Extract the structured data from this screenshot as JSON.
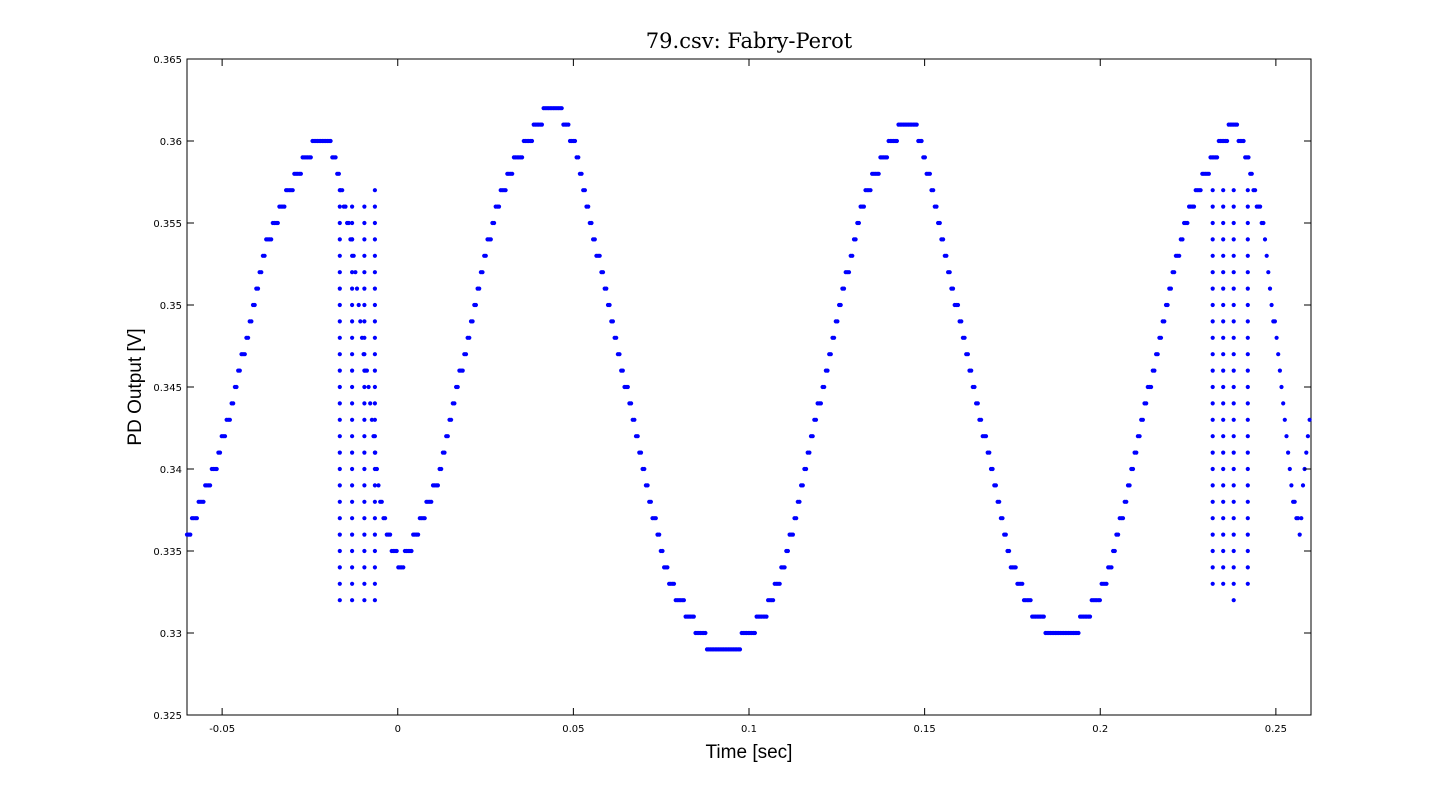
{
  "chart_data": {
    "type": "scatter",
    "title": "79.csv: Fabry-Perot",
    "xlabel": "Time [sec]",
    "ylabel": "PD Output [V]",
    "xlim": [
      -0.06,
      0.26
    ],
    "ylim": [
      0.325,
      0.365
    ],
    "xticks": [
      -0.05,
      0,
      0.05,
      0.1,
      0.15,
      0.2,
      0.25
    ],
    "xtick_labels": [
      "-0.05",
      "0",
      "0.05",
      "0.1",
      "0.15",
      "0.2",
      "0.25"
    ],
    "yticks": [
      0.325,
      0.33,
      0.335,
      0.34,
      0.345,
      0.35,
      0.355,
      0.36,
      0.365
    ],
    "ytick_labels": [
      "0.325",
      "0.33",
      "0.335",
      "0.34",
      "0.345",
      "0.35",
      "0.355",
      "0.36",
      "0.365"
    ],
    "grid": false,
    "marker_color": "#0000ff",
    "quantization": 0.001,
    "sample_step": 0.00047,
    "series": [
      {
        "points": [
          [
            -0.06,
            0.336
          ],
          [
            -0.058,
            0.337
          ],
          [
            -0.056,
            0.338
          ],
          [
            -0.054,
            0.339
          ],
          [
            -0.052,
            0.34
          ],
          [
            -0.051,
            0.341
          ],
          [
            -0.05,
            0.342
          ],
          [
            -0.048,
            0.343
          ],
          [
            -0.047,
            0.344
          ],
          [
            -0.046,
            0.345
          ],
          [
            -0.045,
            0.346
          ],
          [
            -0.044,
            0.347
          ],
          [
            -0.043,
            0.348
          ],
          [
            -0.042,
            0.349
          ],
          [
            -0.041,
            0.35
          ],
          [
            -0.04,
            0.351
          ],
          [
            -0.039,
            0.352
          ],
          [
            -0.038,
            0.353
          ],
          [
            -0.037,
            0.354
          ],
          [
            -0.035,
            0.355
          ],
          [
            -0.033,
            0.356
          ],
          [
            -0.031,
            0.357
          ],
          [
            -0.0285,
            0.358
          ],
          [
            -0.026,
            0.359
          ],
          [
            -0.023,
            0.36
          ],
          [
            -0.02,
            0.36
          ],
          [
            -0.018,
            0.359
          ],
          [
            -0.017,
            0.358
          ],
          [
            -0.016,
            0.357
          ],
          [
            -0.015,
            0.356
          ],
          [
            -0.014,
            0.355
          ],
          [
            -0.013,
            0.354
          ],
          [
            -0.012,
            0.352
          ],
          [
            -0.011,
            0.35
          ],
          [
            -0.01,
            0.348
          ],
          [
            -0.009,
            0.346
          ],
          [
            -0.008,
            0.344
          ],
          [
            -0.007,
            0.342
          ],
          [
            -0.006,
            0.34
          ],
          [
            -0.005,
            0.338
          ],
          [
            -0.004,
            0.337
          ],
          [
            -0.003,
            0.336
          ],
          [
            -0.001,
            0.335
          ],
          [
            0.001,
            0.334
          ],
          [
            0.003,
            0.335
          ],
          [
            0.005,
            0.336
          ],
          [
            0.007,
            0.337
          ],
          [
            0.009,
            0.338
          ],
          [
            0.011,
            0.339
          ],
          [
            0.012,
            0.34
          ],
          [
            0.013,
            0.341
          ],
          [
            0.014,
            0.342
          ],
          [
            0.015,
            0.343
          ],
          [
            0.016,
            0.344
          ],
          [
            0.017,
            0.345
          ],
          [
            0.018,
            0.346
          ],
          [
            0.019,
            0.347
          ],
          [
            0.02,
            0.348
          ],
          [
            0.021,
            0.349
          ],
          [
            0.022,
            0.35
          ],
          [
            0.023,
            0.351
          ],
          [
            0.024,
            0.352
          ],
          [
            0.025,
            0.353
          ],
          [
            0.026,
            0.354
          ],
          [
            0.027,
            0.355
          ],
          [
            0.028,
            0.356
          ],
          [
            0.03,
            0.357
          ],
          [
            0.032,
            0.358
          ],
          [
            0.034,
            0.359
          ],
          [
            0.037,
            0.36
          ],
          [
            0.04,
            0.361
          ],
          [
            0.043,
            0.362
          ],
          [
            0.046,
            0.362
          ],
          [
            0.048,
            0.361
          ],
          [
            0.05,
            0.36
          ],
          [
            0.051,
            0.359
          ],
          [
            0.052,
            0.358
          ],
          [
            0.053,
            0.357
          ],
          [
            0.054,
            0.356
          ],
          [
            0.055,
            0.355
          ],
          [
            0.056,
            0.354
          ],
          [
            0.057,
            0.353
          ],
          [
            0.058,
            0.352
          ],
          [
            0.059,
            0.351
          ],
          [
            0.06,
            0.35
          ],
          [
            0.061,
            0.349
          ],
          [
            0.062,
            0.348
          ],
          [
            0.063,
            0.347
          ],
          [
            0.064,
            0.346
          ],
          [
            0.065,
            0.345
          ],
          [
            0.066,
            0.344
          ],
          [
            0.067,
            0.343
          ],
          [
            0.068,
            0.342
          ],
          [
            0.069,
            0.341
          ],
          [
            0.07,
            0.34
          ],
          [
            0.071,
            0.339
          ],
          [
            0.072,
            0.338
          ],
          [
            0.073,
            0.337
          ],
          [
            0.074,
            0.336
          ],
          [
            0.075,
            0.335
          ],
          [
            0.076,
            0.334
          ],
          [
            0.078,
            0.333
          ],
          [
            0.08,
            0.332
          ],
          [
            0.083,
            0.331
          ],
          [
            0.086,
            0.33
          ],
          [
            0.09,
            0.329
          ],
          [
            0.095,
            0.329
          ],
          [
            0.1,
            0.33
          ],
          [
            0.104,
            0.331
          ],
          [
            0.106,
            0.332
          ],
          [
            0.108,
            0.333
          ],
          [
            0.11,
            0.334
          ],
          [
            0.111,
            0.335
          ],
          [
            0.112,
            0.336
          ],
          [
            0.113,
            0.337
          ],
          [
            0.114,
            0.338
          ],
          [
            0.115,
            0.339
          ],
          [
            0.116,
            0.34
          ],
          [
            0.117,
            0.341
          ],
          [
            0.118,
            0.342
          ],
          [
            0.119,
            0.343
          ],
          [
            0.12,
            0.344
          ],
          [
            0.121,
            0.345
          ],
          [
            0.122,
            0.346
          ],
          [
            0.123,
            0.347
          ],
          [
            0.124,
            0.348
          ],
          [
            0.125,
            0.349
          ],
          [
            0.126,
            0.35
          ],
          [
            0.127,
            0.351
          ],
          [
            0.128,
            0.352
          ],
          [
            0.129,
            0.353
          ],
          [
            0.13,
            0.354
          ],
          [
            0.131,
            0.355
          ],
          [
            0.132,
            0.356
          ],
          [
            0.134,
            0.357
          ],
          [
            0.136,
            0.358
          ],
          [
            0.138,
            0.359
          ],
          [
            0.141,
            0.36
          ],
          [
            0.144,
            0.361
          ],
          [
            0.147,
            0.361
          ],
          [
            0.149,
            0.36
          ],
          [
            0.15,
            0.359
          ],
          [
            0.151,
            0.358
          ],
          [
            0.152,
            0.357
          ],
          [
            0.153,
            0.356
          ],
          [
            0.154,
            0.355
          ],
          [
            0.155,
            0.354
          ],
          [
            0.156,
            0.353
          ],
          [
            0.157,
            0.352
          ],
          [
            0.158,
            0.351
          ],
          [
            0.159,
            0.35
          ],
          [
            0.16,
            0.349
          ],
          [
            0.161,
            0.348
          ],
          [
            0.162,
            0.347
          ],
          [
            0.163,
            0.346
          ],
          [
            0.164,
            0.345
          ],
          [
            0.165,
            0.344
          ],
          [
            0.166,
            0.343
          ],
          [
            0.167,
            0.342
          ],
          [
            0.168,
            0.341
          ],
          [
            0.169,
            0.34
          ],
          [
            0.17,
            0.339
          ],
          [
            0.171,
            0.338
          ],
          [
            0.172,
            0.337
          ],
          [
            0.173,
            0.336
          ],
          [
            0.174,
            0.335
          ],
          [
            0.175,
            0.334
          ],
          [
            0.177,
            0.333
          ],
          [
            0.179,
            0.332
          ],
          [
            0.182,
            0.331
          ],
          [
            0.186,
            0.33
          ],
          [
            0.192,
            0.33
          ],
          [
            0.196,
            0.331
          ],
          [
            0.199,
            0.332
          ],
          [
            0.201,
            0.333
          ],
          [
            0.203,
            0.334
          ],
          [
            0.204,
            0.335
          ],
          [
            0.205,
            0.336
          ],
          [
            0.206,
            0.337
          ],
          [
            0.207,
            0.338
          ],
          [
            0.208,
            0.339
          ],
          [
            0.209,
            0.34
          ],
          [
            0.21,
            0.341
          ],
          [
            0.211,
            0.342
          ],
          [
            0.212,
            0.343
          ],
          [
            0.213,
            0.344
          ],
          [
            0.214,
            0.345
          ],
          [
            0.215,
            0.346
          ],
          [
            0.216,
            0.347
          ],
          [
            0.217,
            0.348
          ],
          [
            0.218,
            0.349
          ],
          [
            0.219,
            0.35
          ],
          [
            0.22,
            0.351
          ],
          [
            0.221,
            0.352
          ],
          [
            0.222,
            0.353
          ],
          [
            0.223,
            0.354
          ],
          [
            0.224,
            0.355
          ],
          [
            0.226,
            0.356
          ],
          [
            0.228,
            0.357
          ],
          [
            0.23,
            0.358
          ],
          [
            0.232,
            0.359
          ],
          [
            0.235,
            0.36
          ],
          [
            0.238,
            0.361
          ],
          [
            0.24,
            0.36
          ],
          [
            0.242,
            0.359
          ],
          [
            0.243,
            0.358
          ],
          [
            0.244,
            0.357
          ],
          [
            0.245,
            0.356
          ],
          [
            0.246,
            0.355
          ],
          [
            0.247,
            0.354
          ],
          [
            0.248,
            0.352
          ],
          [
            0.249,
            0.35
          ],
          [
            0.25,
            0.348
          ],
          [
            0.251,
            0.346
          ],
          [
            0.252,
            0.344
          ],
          [
            0.253,
            0.342
          ],
          [
            0.254,
            0.34
          ],
          [
            0.255,
            0.338
          ],
          [
            0.256,
            0.337
          ],
          [
            0.257,
            0.336
          ],
          [
            0.258,
            0.34
          ],
          [
            0.259,
            0.342
          ],
          [
            0.26,
            0.344
          ]
        ]
      }
    ],
    "fringe_columns": [
      {
        "x": -0.0165,
        "y_min": 0.332,
        "y_max": 0.357
      },
      {
        "x": -0.013,
        "y_min": 0.332,
        "y_max": 0.356
      },
      {
        "x": -0.0095,
        "y_min": 0.332,
        "y_max": 0.356
      },
      {
        "x": -0.0065,
        "y_min": 0.332,
        "y_max": 0.357
      },
      {
        "x": 0.232,
        "y_min": 0.333,
        "y_max": 0.357
      },
      {
        "x": 0.235,
        "y_min": 0.333,
        "y_max": 0.357
      },
      {
        "x": 0.238,
        "y_min": 0.332,
        "y_max": 0.357
      },
      {
        "x": 0.242,
        "y_min": 0.333,
        "y_max": 0.357
      }
    ]
  }
}
